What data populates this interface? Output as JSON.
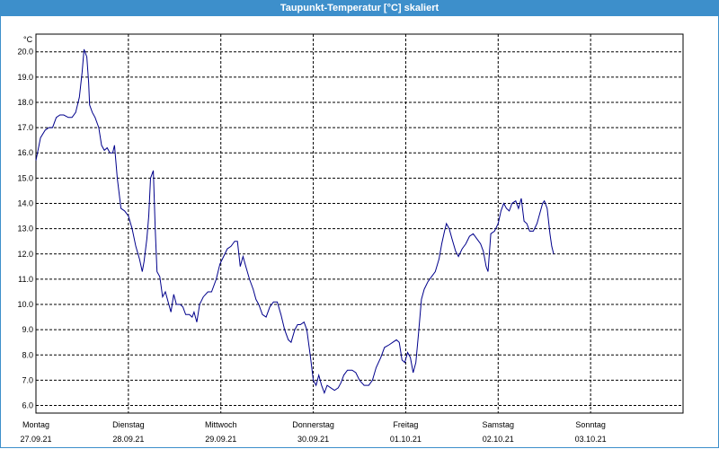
{
  "window": {
    "title": "Taupunkt-Temperatur [°C] skaliert"
  },
  "chart_data": {
    "type": "line",
    "title": "Taupunkt-Temperatur [°C] skaliert",
    "ylabel": "°C",
    "xlabel": "",
    "ylim": [
      5.7,
      20.7
    ],
    "xlim": [
      0,
      7
    ],
    "grid": true,
    "line_color": "#00008b",
    "y_ticks": [
      "20.0",
      "19.0",
      "18.0",
      "17.0",
      "16.0",
      "15.0",
      "14.0",
      "13.0",
      "12.0",
      "11.0",
      "10.0",
      "9.0",
      "8.0",
      "7.0",
      "6.0"
    ],
    "x_ticks": [
      {
        "day": "Montag",
        "date": "27.09.21"
      },
      {
        "day": "Dienstag",
        "date": "28.09.21"
      },
      {
        "day": "Mittwoch",
        "date": "29.09.21"
      },
      {
        "day": "Donnerstag",
        "date": "30.09.21"
      },
      {
        "day": "Freitag",
        "date": "01.10.21"
      },
      {
        "day": "Samstag",
        "date": "02.10.21"
      },
      {
        "day": "Sonntag",
        "date": "03.10.21"
      }
    ],
    "series": [
      {
        "points": [
          [
            0.0,
            15.7
          ],
          [
            0.05,
            16.6
          ],
          [
            0.1,
            16.9
          ],
          [
            0.14,
            17.0
          ],
          [
            0.18,
            17.0
          ],
          [
            0.22,
            17.4
          ],
          [
            0.26,
            17.5
          ],
          [
            0.3,
            17.5
          ],
          [
            0.35,
            17.4
          ],
          [
            0.39,
            17.4
          ],
          [
            0.43,
            17.6
          ],
          [
            0.47,
            18.2
          ],
          [
            0.5,
            19.2
          ],
          [
            0.52,
            20.1
          ],
          [
            0.55,
            19.8
          ],
          [
            0.57,
            18.8
          ],
          [
            0.58,
            17.9
          ],
          [
            0.61,
            17.6
          ],
          [
            0.64,
            17.4
          ],
          [
            0.68,
            17.0
          ],
          [
            0.71,
            16.3
          ],
          [
            0.74,
            16.1
          ],
          [
            0.77,
            16.2
          ],
          [
            0.8,
            16.0
          ],
          [
            0.83,
            16.0
          ],
          [
            0.85,
            16.3
          ],
          [
            0.88,
            15.0
          ],
          [
            0.92,
            13.8
          ],
          [
            0.96,
            13.7
          ],
          [
            1.0,
            13.5
          ],
          [
            1.04,
            13.0
          ],
          [
            1.08,
            12.3
          ],
          [
            1.12,
            11.8
          ],
          [
            1.15,
            11.3
          ],
          [
            1.17,
            11.7
          ],
          [
            1.2,
            12.6
          ],
          [
            1.22,
            13.5
          ],
          [
            1.24,
            15.0
          ],
          [
            1.27,
            15.3
          ],
          [
            1.29,
            13.0
          ],
          [
            1.31,
            11.3
          ],
          [
            1.34,
            11.1
          ],
          [
            1.37,
            10.3
          ],
          [
            1.4,
            10.5
          ],
          [
            1.43,
            10.1
          ],
          [
            1.46,
            9.7
          ],
          [
            1.49,
            10.4
          ],
          [
            1.52,
            10.0
          ],
          [
            1.56,
            10.0
          ],
          [
            1.59,
            9.9
          ],
          [
            1.62,
            9.6
          ],
          [
            1.66,
            9.6
          ],
          [
            1.69,
            9.5
          ],
          [
            1.71,
            9.7
          ],
          [
            1.74,
            9.3
          ],
          [
            1.77,
            10.0
          ],
          [
            1.81,
            10.3
          ],
          [
            1.86,
            10.5
          ],
          [
            1.9,
            10.5
          ],
          [
            1.95,
            11.0
          ],
          [
            1.99,
            11.6
          ],
          [
            2.03,
            11.9
          ],
          [
            2.07,
            12.2
          ],
          [
            2.11,
            12.3
          ],
          [
            2.15,
            12.5
          ],
          [
            2.18,
            12.5
          ],
          [
            2.21,
            11.5
          ],
          [
            2.24,
            11.9
          ],
          [
            2.27,
            11.5
          ],
          [
            2.31,
            11.0
          ],
          [
            2.35,
            10.6
          ],
          [
            2.38,
            10.2
          ],
          [
            2.41,
            10.0
          ],
          [
            2.45,
            9.6
          ],
          [
            2.49,
            9.5
          ],
          [
            2.53,
            9.9
          ],
          [
            2.57,
            10.1
          ],
          [
            2.61,
            10.1
          ],
          [
            2.65,
            9.6
          ],
          [
            2.69,
            9.0
          ],
          [
            2.73,
            8.6
          ],
          [
            2.76,
            8.5
          ],
          [
            2.8,
            9.0
          ],
          [
            2.83,
            9.2
          ],
          [
            2.86,
            9.2
          ],
          [
            2.9,
            9.3
          ],
          [
            2.93,
            9.0
          ],
          [
            2.97,
            7.9
          ],
          [
            3.0,
            7.0
          ],
          [
            3.03,
            6.8
          ],
          [
            3.06,
            7.2
          ],
          [
            3.09,
            6.8
          ],
          [
            3.12,
            6.5
          ],
          [
            3.15,
            6.8
          ],
          [
            3.19,
            6.7
          ],
          [
            3.23,
            6.6
          ],
          [
            3.27,
            6.7
          ],
          [
            3.3,
            6.9
          ],
          [
            3.33,
            7.2
          ],
          [
            3.37,
            7.4
          ],
          [
            3.42,
            7.4
          ],
          [
            3.46,
            7.3
          ],
          [
            3.5,
            7.0
          ],
          [
            3.55,
            6.8
          ],
          [
            3.6,
            6.8
          ],
          [
            3.64,
            7.0
          ],
          [
            3.68,
            7.5
          ],
          [
            3.73,
            7.9
          ],
          [
            3.77,
            8.3
          ],
          [
            3.82,
            8.4
          ],
          [
            3.86,
            8.5
          ],
          [
            3.9,
            8.6
          ],
          [
            3.93,
            8.5
          ],
          [
            3.96,
            7.8
          ],
          [
            3.99,
            7.7
          ],
          [
            4.02,
            8.1
          ],
          [
            4.05,
            7.9
          ],
          [
            4.08,
            7.3
          ],
          [
            4.11,
            7.7
          ],
          [
            4.14,
            8.9
          ],
          [
            4.17,
            10.2
          ],
          [
            4.2,
            10.6
          ],
          [
            4.24,
            10.9
          ],
          [
            4.28,
            11.1
          ],
          [
            4.32,
            11.3
          ],
          [
            4.36,
            11.8
          ],
          [
            4.39,
            12.4
          ],
          [
            4.42,
            12.9
          ],
          [
            4.44,
            13.2
          ],
          [
            4.47,
            13.0
          ],
          [
            4.5,
            12.6
          ],
          [
            4.54,
            12.1
          ],
          [
            4.57,
            11.9
          ],
          [
            4.61,
            12.2
          ],
          [
            4.65,
            12.4
          ],
          [
            4.69,
            12.7
          ],
          [
            4.73,
            12.8
          ],
          [
            4.77,
            12.6
          ],
          [
            4.81,
            12.4
          ],
          [
            4.84,
            12.1
          ],
          [
            4.87,
            11.5
          ],
          [
            4.89,
            11.3
          ],
          [
            4.92,
            12.8
          ],
          [
            4.96,
            12.9
          ],
          [
            5.0,
            13.2
          ],
          [
            5.03,
            13.7
          ],
          [
            5.06,
            14.0
          ],
          [
            5.09,
            13.8
          ],
          [
            5.12,
            13.7
          ],
          [
            5.15,
            14.0
          ],
          [
            5.19,
            14.1
          ],
          [
            5.22,
            13.8
          ],
          [
            5.25,
            14.2
          ],
          [
            5.28,
            13.3
          ],
          [
            5.31,
            13.2
          ],
          [
            5.34,
            12.9
          ],
          [
            5.38,
            12.9
          ],
          [
            5.42,
            13.2
          ],
          [
            5.45,
            13.6
          ],
          [
            5.48,
            14.0
          ],
          [
            5.5,
            14.1
          ],
          [
            5.53,
            13.8
          ],
          [
            5.56,
            12.8
          ],
          [
            5.58,
            12.3
          ],
          [
            5.6,
            12.0
          ]
        ]
      }
    ]
  }
}
